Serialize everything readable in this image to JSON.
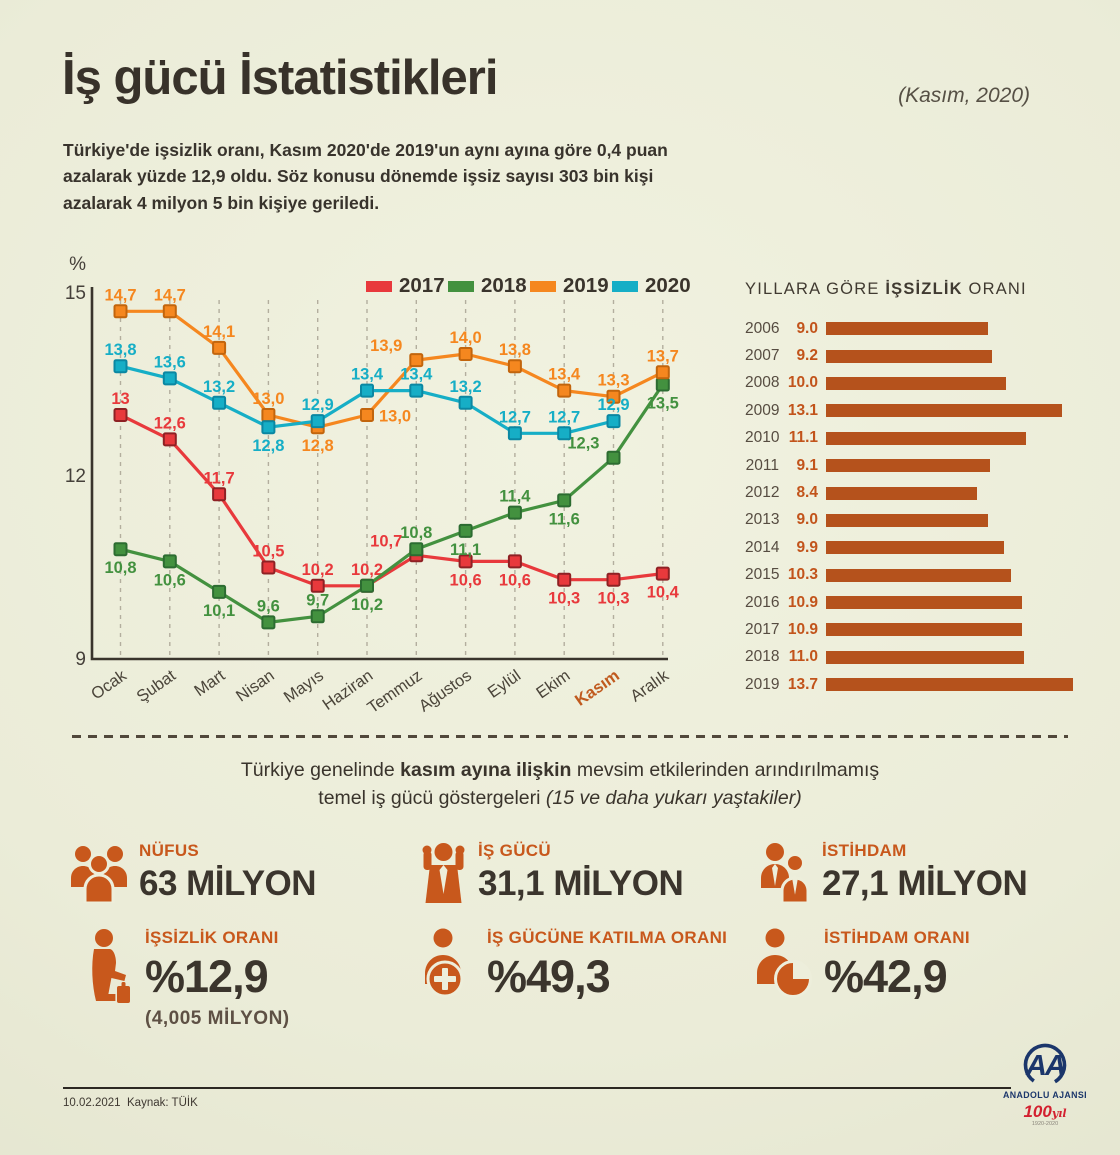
{
  "header": {
    "title": "İş gücü İstatistikleri",
    "date_note": "(Kasım, 2020)",
    "intro": "Türkiye'de işsizlik oranı, Kasım 2020'de 2019'un aynı ayına göre 0,4 puan azalarak yüzde 12,9 oldu. Söz konusu dönemde işsiz sayısı 303 bin kişi azalarak 4 milyon 5 bin kişiye geriledi."
  },
  "chart_data": [
    {
      "type": "line",
      "unit_label": "%",
      "x": [
        "Ocak",
        "Şubat",
        "Mart",
        "Nisan",
        "Mayıs",
        "Haziran",
        "Temmuz",
        "Ağustos",
        "Eylül",
        "Ekim",
        "Kasım",
        "Aralık"
      ],
      "highlight_x": "Kasım",
      "ylim": [
        9,
        15
      ],
      "yticks": [
        "15",
        "12",
        "9"
      ],
      "grid": "vertical-dashed",
      "legend_position": "top-right",
      "series": [
        {
          "name": "2017",
          "color": "#e8393c",
          "values": [
            "13",
            "12,6",
            "11,7",
            "10,5",
            "10,2",
            "10,2",
            "10,7",
            "10,6",
            "10,6",
            "10,3",
            "10,3",
            "10,4"
          ]
        },
        {
          "name": "2018",
          "color": "#43913f",
          "values": [
            "10,8",
            "10,6",
            "10,1",
            "9,6",
            "9,7",
            "10,2",
            "10,8",
            "11,1",
            "11,4",
            "11,6",
            "12,3",
            "13,5"
          ]
        },
        {
          "name": "2019",
          "color": "#f5871f",
          "values": [
            "14,7",
            "14,7",
            "14,1",
            "13,0",
            "12,8",
            "13,0",
            "13,9",
            "14,0",
            "13,8",
            "13,4",
            "13,3",
            "13,7"
          ]
        },
        {
          "name": "2020",
          "color": "#16aec6",
          "values": [
            "13,8",
            "13,6",
            "13,2",
            "12,8",
            "12,9",
            "13,4",
            "13,4",
            "13,2",
            "12,7",
            "12,7",
            "12,9"
          ]
        }
      ]
    },
    {
      "type": "bar",
      "orientation": "horizontal",
      "title_parts": {
        "pre": "YILLARA GÖRE ",
        "bold": "İŞSİZLİK",
        "post": " ORANI"
      },
      "categories": [
        "2006",
        "2007",
        "2008",
        "2009",
        "2010",
        "2011",
        "2012",
        "2013",
        "2014",
        "2015",
        "2016",
        "2017",
        "2018",
        "2019"
      ],
      "values": [
        "9.0",
        "9.2",
        "10.0",
        "13.1",
        "11.1",
        "9.1",
        "8.4",
        "9.0",
        "9.9",
        "10.3",
        "10.9",
        "10.9",
        "11.0",
        "13.7"
      ],
      "bar_color": "#b5521c",
      "xlim": [
        0,
        14
      ]
    }
  ],
  "mid_section": {
    "line1_pre": "Türkiye genelinde ",
    "line1_bold": "kasım ayına ilişkin",
    "line1_post": " mevsim etkilerinden arındırılmamış",
    "line2_pre": "temel iş gücü göstergeleri ",
    "line2_italic": "(15 ve daha yukarı yaştakiler)"
  },
  "stats": [
    {
      "icon": "population-icon",
      "label": "NÜFUS",
      "value": "63 MİLYON"
    },
    {
      "icon": "workforce-icon",
      "label": "İŞ GÜCÜ",
      "value": "31,1 MİLYON"
    },
    {
      "icon": "employment-icon",
      "label": "İSTİHDAM",
      "value": "27,1 MİLYON"
    },
    {
      "icon": "unemployed-person-icon",
      "label": "İŞSİZLİK ORANI",
      "value": "%12,9",
      "sub": "(4,005 MİLYON)"
    },
    {
      "icon": "participation-icon",
      "label": "İŞ GÜCÜNE KATILMA ORANI",
      "value": "%49,3"
    },
    {
      "icon": "employment-rate-icon",
      "label": "İSTİHDAM ORANI",
      "value": "%42,9"
    }
  ],
  "footer": {
    "date": "10.02.2021",
    "source": "Kaynak: TÜİK",
    "agency_initials": "AA",
    "agency_name": "ANADOLU AJANSI",
    "anniversary_number": "100",
    "anniversary_word": "yıl",
    "anniversary_years": "1920-2020"
  },
  "palette": {
    "background": "#edeedb",
    "dark_text": "#3b352d",
    "accent_orange": "#c8581c",
    "bar_orange": "#b5521c",
    "series_2017": "#e8393c",
    "series_2018": "#43913f",
    "series_2019": "#f5871f",
    "series_2020": "#16aec6",
    "aa_navy": "#1b366b",
    "aa_red": "#d31f2f"
  }
}
